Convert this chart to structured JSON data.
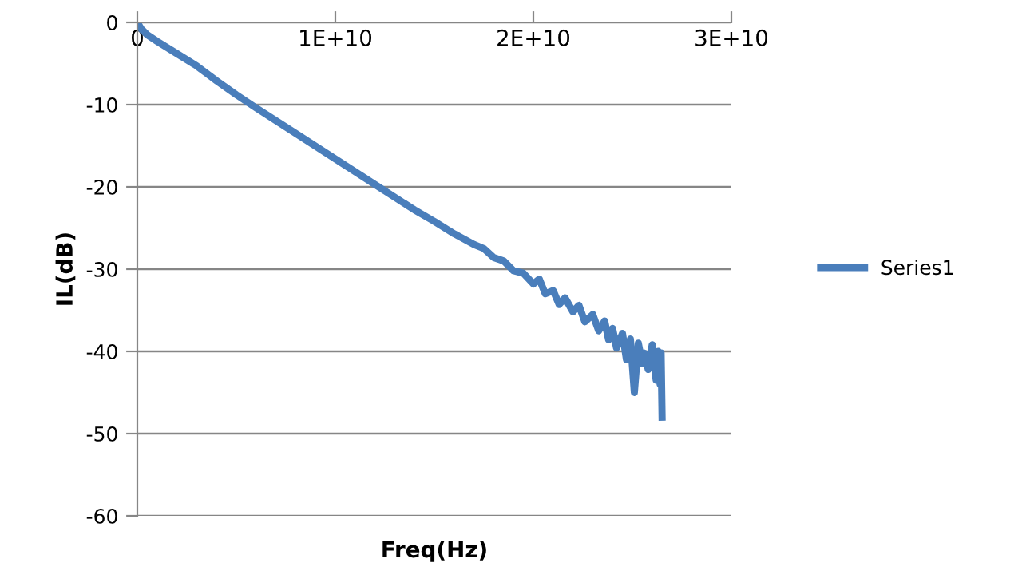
{
  "chart_data": {
    "type": "line",
    "xlabel": "Freq(Hz)",
    "ylabel": "IL(dB)",
    "xlim": [
      0,
      30000000000
    ],
    "xticks": [
      0,
      {
        "value": 10000000000,
        "label": "1E+10"
      },
      {
        "value": 20000000000,
        "label": "2E+10"
      },
      {
        "value": 30000000000,
        "label": "3E+10"
      }
    ],
    "ylim": [
      -60,
      0
    ],
    "yticks": [
      -60,
      -50,
      -40,
      -30,
      -20,
      -10,
      0
    ],
    "grid": "y",
    "legend": "right",
    "marker": "none",
    "line_style": "solid",
    "series": [
      {
        "name": "Series1",
        "color": "#4a7ebb",
        "x": [
          0,
          200000000,
          500000000,
          1000000000,
          2000000000,
          3000000000,
          4000000000,
          5000000000,
          6000000000,
          8000000000,
          10000000000,
          12000000000,
          14000000000,
          15000000000,
          16000000000,
          17000000000,
          17500000000,
          18000000000,
          18500000000,
          19000000000,
          19500000000,
          20000000000,
          20300000000,
          20600000000,
          21000000000,
          21300000000,
          21600000000,
          22000000000,
          22300000000,
          22600000000,
          23000000000,
          23300000000,
          23600000000,
          23800000000,
          24000000000,
          24200000000,
          24500000000,
          24700000000,
          24900000000,
          25100000000,
          25300000000,
          25500000000,
          25600000000,
          25800000000,
          26000000000,
          26200000000,
          26300000000,
          26400000000,
          26450000000,
          26500000000
        ],
        "values": [
          0,
          -0.8,
          -1.5,
          -2.3,
          -3.8,
          -5.3,
          -7.1,
          -8.8,
          -10.4,
          -13.5,
          -16.6,
          -19.7,
          -22.8,
          -24.2,
          -25.7,
          -27.0,
          -27.5,
          -28.6,
          -29.0,
          -30.2,
          -30.5,
          -31.8,
          -31.2,
          -33.0,
          -32.6,
          -34.3,
          -33.5,
          -35.2,
          -34.4,
          -36.4,
          -35.5,
          -37.5,
          -36.3,
          -38.6,
          -37.2,
          -39.6,
          -37.8,
          -41.0,
          -38.5,
          -45.0,
          -39.0,
          -41.5,
          -40.2,
          -42.2,
          -39.2,
          -43.5,
          -40.0,
          -44.0,
          -40.2,
          -48.0
        ]
      }
    ]
  }
}
